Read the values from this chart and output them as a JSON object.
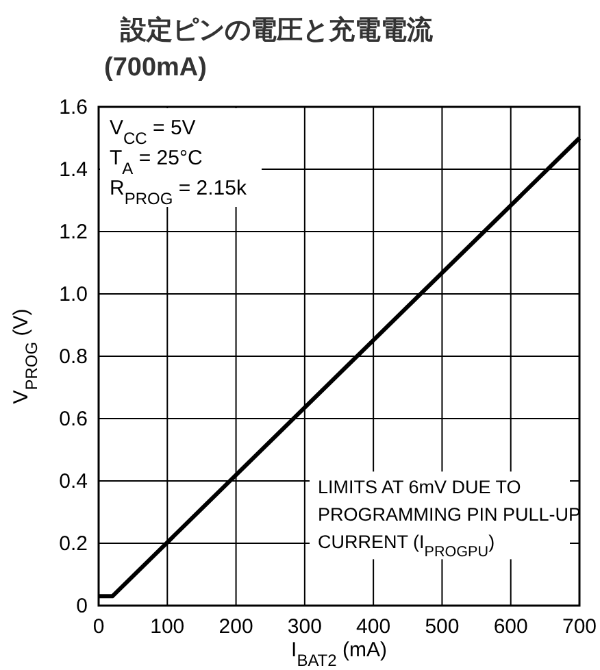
{
  "chart_data": {
    "type": "line",
    "title": "設定ピンの電圧と充電電流",
    "subtitle": "(700mA)",
    "xlabel": "I$_{BAT2}$ (mA)",
    "ylabel": "V$_{PROG}$ (V)",
    "x": [
      0,
      20,
      700
    ],
    "series": [
      {
        "color": "#000000",
        "values": [
          0.03,
          0.03,
          1.5
        ]
      }
    ],
    "xlim": [
      0,
      700
    ],
    "ylim": [
      0,
      1.6
    ],
    "xticks": [
      0,
      100,
      200,
      300,
      400,
      500,
      600,
      700
    ],
    "yticks": [
      0,
      0.2,
      0.4,
      0.6,
      0.8,
      {
        "value": 1,
        "label": "1.0"
      },
      1.2,
      1.4,
      1.6
    ],
    "grid": true,
    "annotations": [
      "V$_{CC}$ = 5V",
      "T$_{A}$ = 25°C",
      "R$_{PROG}$ = 2.15k",
      "LIMITS AT 6mV DUE TO\nPROGRAMMING PIN PULL-UP\nCURRENT (I$_{PROGPU}$)"
    ]
  }
}
